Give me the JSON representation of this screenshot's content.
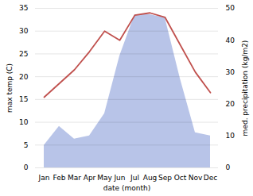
{
  "chart_data": {
    "type": "line",
    "xlabel": "date (month)",
    "ylabel": "max temp (C)",
    "y2label": "med. precipitation (kg/m2)",
    "categories": [
      "Jan",
      "Feb",
      "Mar",
      "Apr",
      "May",
      "Jun",
      "Jul",
      "Aug",
      "Sep",
      "Oct",
      "Nov",
      "Dec"
    ],
    "series": [
      {
        "type": "area",
        "axis": "y2",
        "color": "#b8c4e8",
        "values": [
          7.0,
          13.0,
          9.0,
          10.0,
          17.0,
          35.0,
          48.0,
          48.0,
          47.0,
          28.0,
          11.0,
          10.0
        ]
      },
      {
        "type": "line",
        "color": "#c0504d",
        "values": [
          15.5,
          18.5,
          21.5,
          25.5,
          30.0,
          28.0,
          33.5,
          34.0,
          33.0,
          27.0,
          21.0,
          16.5
        ]
      }
    ],
    "ylim": [
      0,
      35
    ],
    "yticks": [
      0,
      5,
      10,
      15,
      20,
      25,
      30,
      35
    ],
    "y2lim": [
      0,
      50
    ],
    "y2ticks": [
      0,
      10,
      20,
      30,
      40,
      50
    ],
    "grid": true
  }
}
